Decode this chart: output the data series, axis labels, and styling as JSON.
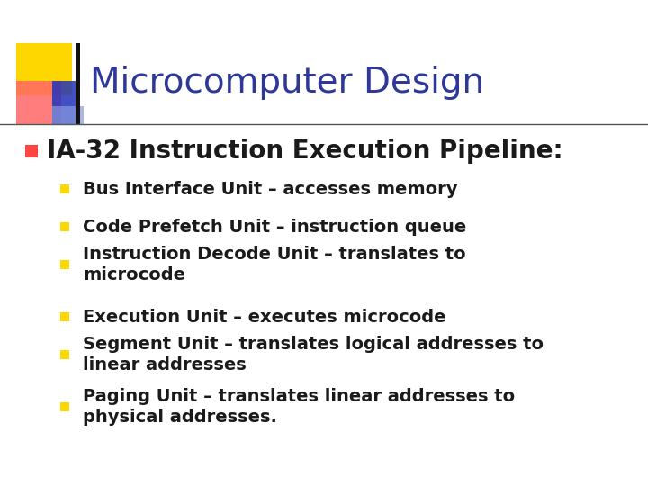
{
  "title": "Microcomputer Design",
  "title_color": "#2E3899",
  "background_color": "#FFFFFF",
  "main_bullet": "IA-32 Instruction Execution Pipeline:",
  "main_bullet_color": "#1a1a1a",
  "main_bullet_size": 20,
  "sub_bullets": [
    "Bus Interface Unit – accesses memory",
    "Code Prefetch Unit – instruction queue",
    "Instruction Decode Unit – translates to\nmicrocode",
    "Execution Unit – executes microcode",
    "Segment Unit – translates logical addresses to\nlinear addresses",
    "Paging Unit – translates linear addresses to\nphysical addresses."
  ],
  "sub_bullet_color": "#1a1a1a",
  "sub_bullet_size": 14,
  "main_bullet_marker_color": "#FF4444",
  "sub_bullet_marker_color": "#FFD700",
  "logo_yellow": "#FFD700",
  "logo_red": "#FF6666",
  "logo_blue_dark": "#2233BB",
  "logo_blue_light": "#8899DD"
}
